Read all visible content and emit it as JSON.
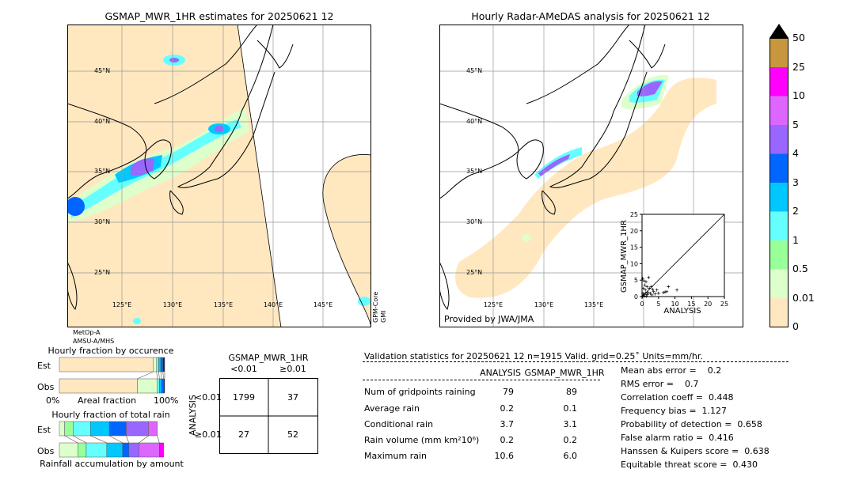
{
  "left_map": {
    "title": "GSMAP_MWR_1HR estimates for 20250621 12",
    "lat_labels": [
      "45°N",
      "40°N",
      "35°N",
      "30°N",
      "25°N"
    ],
    "lon_labels": [
      "125°E",
      "130°E",
      "135°E",
      "140°E",
      "145°E"
    ],
    "sensor_bottom": [
      "MetOp-A",
      "AMSU-A/MHS"
    ],
    "sensor_right": [
      "GPM-Core",
      "GMI"
    ]
  },
  "right_map": {
    "title": "Hourly Radar-AMeDAS analysis for 20250621 12",
    "lat_labels": [
      "45°N",
      "40°N",
      "35°N",
      "30°N",
      "25°N"
    ],
    "lon_labels": [
      "125°E",
      "130°E",
      "135°E"
    ],
    "credit": "Provided by JWA/JMA"
  },
  "colorbar": {
    "labels": [
      "50",
      "25",
      "10",
      "5",
      "4",
      "3",
      "2",
      "1",
      "0.5",
      "0.01",
      "0"
    ],
    "colors": [
      "#c8963c",
      "#ff00ff",
      "#dd66ff",
      "#9966ff",
      "#0066ff",
      "#00c8ff",
      "#66ffff",
      "#99ff99",
      "#ddffcc",
      "#ffe8c0"
    ]
  },
  "occurrence": {
    "title": "Hourly fraction by occurence",
    "rows": [
      "Est",
      "Obs"
    ],
    "xlabel_left": "0%",
    "xlabel_mid": "Areal fraction",
    "xlabel_right": "100%",
    "est": [
      0.893,
      0.03,
      0.02,
      0.02,
      0.02,
      0.017
    ],
    "obs": [
      0.74,
      0.19,
      0.02,
      0.02,
      0.02,
      0.01
    ],
    "colors": [
      "#ffe8c0",
      "#ddffcc",
      "#66ffff",
      "#00c8ff",
      "#0066ff",
      "#1a1a4a"
    ]
  },
  "total_rain": {
    "title": "Hourly fraction of total rain",
    "rows": [
      "Est",
      "Obs"
    ],
    "footer": "Rainfall accumulation by amount",
    "est": [
      0.05,
      0.08,
      0.165,
      0.18,
      0.16,
      0.21,
      0.085
    ],
    "obs": [
      0.175,
      0.08,
      0.195,
      0.15,
      0.06,
      0.095,
      0.195,
      0.04
    ],
    "est_colors": [
      "#ddffcc",
      "#99ff99",
      "#66ffff",
      "#00c8ff",
      "#0066ff",
      "#9966ff",
      "#dd66ff"
    ],
    "obs_colors": [
      "#ddffcc",
      "#99ff99",
      "#66ffff",
      "#00c8ff",
      "#0066ff",
      "#9966ff",
      "#dd66ff",
      "#ff00ff"
    ]
  },
  "contingency": {
    "col_title": "GSMAP_MWR_1HR",
    "col_labels": [
      "<0.01",
      "≥0.01"
    ],
    "row_title": "ANALYSIS",
    "row_labels": [
      "<0.01",
      "≥0.01"
    ],
    "cells": [
      [
        "1799",
        "37"
      ],
      [
        "27",
        "52"
      ]
    ]
  },
  "validation": {
    "title": "Validation statistics for 20250621 12  n=1915 Valid. grid=0.25˚ Units=mm/hr.",
    "col_headers": [
      "ANALYSIS",
      "GSMAP_MWR_1HR"
    ],
    "rows": [
      {
        "label": "Num of gridpoints raining",
        "analysis": "79",
        "gsmap": "89"
      },
      {
        "label": "Average rain",
        "analysis": "0.2",
        "gsmap": "0.1"
      },
      {
        "label": "Conditional rain",
        "analysis": "3.7",
        "gsmap": "3.1"
      },
      {
        "label": "Rain volume (mm km²10⁶)",
        "analysis": "0.2",
        "gsmap": "0.2"
      },
      {
        "label": "Maximum rain",
        "analysis": "10.6",
        "gsmap": "6.0"
      }
    ],
    "scores": [
      "Mean abs error =    0.2",
      "RMS error =    0.7",
      "Correlation coeff =  0.448",
      "Frequency bias =  1.127",
      "Probability of detection =  0.658",
      "False alarm ratio =  0.416",
      "Hanssen & Kuipers score =  0.638",
      "Equitable threat score =  0.430"
    ]
  },
  "chart_data": {
    "type": "scatter",
    "xlabel": "ANALYSIS",
    "ylabel": "GSMAP_MWR_1HR",
    "xlim": [
      0,
      25
    ],
    "ylim": [
      0,
      25
    ],
    "ticks": [
      "0",
      "5",
      "10",
      "15",
      "20",
      "25"
    ],
    "points": [
      [
        0.2,
        5.5
      ],
      [
        0.5,
        4.8
      ],
      [
        0.8,
        3.5
      ],
      [
        1,
        2
      ],
      [
        1.2,
        4.5
      ],
      [
        0.3,
        1
      ],
      [
        0.5,
        0.5
      ],
      [
        1.5,
        3
      ],
      [
        2,
        5.8
      ],
      [
        2.2,
        2.5
      ],
      [
        2.5,
        1
      ],
      [
        3,
        0.5
      ],
      [
        3.5,
        1.5
      ],
      [
        4.5,
        2
      ],
      [
        5,
        1
      ],
      [
        0.7,
        0.2
      ],
      [
        1.8,
        1.2
      ],
      [
        1,
        1
      ],
      [
        0.4,
        2.5
      ],
      [
        2.8,
        3
      ],
      [
        6.5,
        1.2
      ],
      [
        7,
        1.4
      ],
      [
        7.5,
        1.5
      ],
      [
        8,
        3
      ],
      [
        10.6,
        2
      ],
      [
        4,
        0.8
      ],
      [
        1.3,
        0.1
      ],
      [
        0.2,
        0.1
      ],
      [
        3.2,
        2.2
      ],
      [
        1.6,
        0.6
      ]
    ]
  }
}
